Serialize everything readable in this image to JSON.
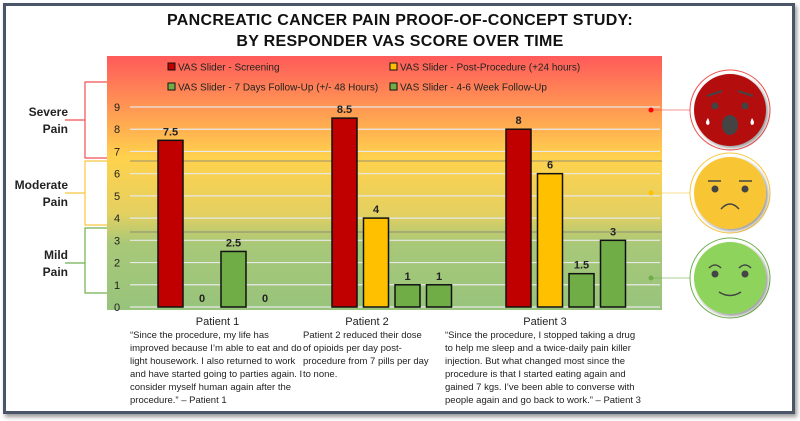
{
  "title_line1": "PANCREATIC CANCER PAIN PROOF-OF-CONCEPT STUDY:",
  "title_line2": "BY RESPONDER VAS SCORE OVER TIME",
  "pain_levels": [
    {
      "label1": "Severe",
      "label2": "Pain",
      "color": "#f05050"
    },
    {
      "label1": "Moderate",
      "label2": "Pain",
      "color": "#f8c840"
    },
    {
      "label1": "Mild",
      "label2": "Pain",
      "color": "#70b050"
    }
  ],
  "chart_data": {
    "type": "bar",
    "title": "PANCREATIC CANCER PAIN PROOF-OF-CONCEPT STUDY: BY RESPONDER VAS SCORE OVER TIME",
    "categories": [
      "Patient 1",
      "Patient 2",
      "Patient 3"
    ],
    "series": [
      {
        "name": "VAS Slider - Screening",
        "color": "#c00000",
        "values": [
          7.5,
          8.5,
          8
        ]
      },
      {
        "name": "VAS Slider - Post-Procedure (+24 hours)",
        "color": "#ffc000",
        "values": [
          0,
          4,
          6
        ]
      },
      {
        "name": "VAS Slider - 7 Days Follow-Up (+/- 48 Hours)",
        "color": "#70ad47",
        "values": [
          2.5,
          1,
          1.5
        ]
      },
      {
        "name": "VAS Slider - 4-6 Week Follow-Up",
        "color": "#70ad47",
        "values": [
          0,
          1,
          3
        ]
      }
    ],
    "yticks": [
      0,
      1,
      2,
      3,
      4,
      5,
      6,
      7,
      8,
      9
    ],
    "ylim": [
      0,
      9
    ],
    "grid": true,
    "legend": "top"
  },
  "notes": [
    {
      "header": "Patient 1",
      "text": "“Since the procedure, my life has improved because I’m able to eat and do light housework. I also returned to work and have started going to parties again. I consider myself human again after the procedure.” – Patient 1"
    },
    {
      "header": "Patient 2",
      "text": "Patient 2 reduced their dose of opioids per day post-procedure from 7 pills per day to none."
    },
    {
      "header": "Patient 3",
      "text": "“Since the procedure, I stopped taking a drug to help me sleep and a twice-daily pain killer injection. But what changed most since the procedure is that I started eating again and gained 7 kgs. I’ve been able to converse with people again and go back to work.” – Patient 3"
    }
  ],
  "faces": [
    {
      "icon": "crying-face-icon",
      "color": "#b30a0a"
    },
    {
      "icon": "sad-face-icon",
      "color": "#f8c634"
    },
    {
      "icon": "smiling-face-icon",
      "color": "#8ed45c"
    }
  ]
}
